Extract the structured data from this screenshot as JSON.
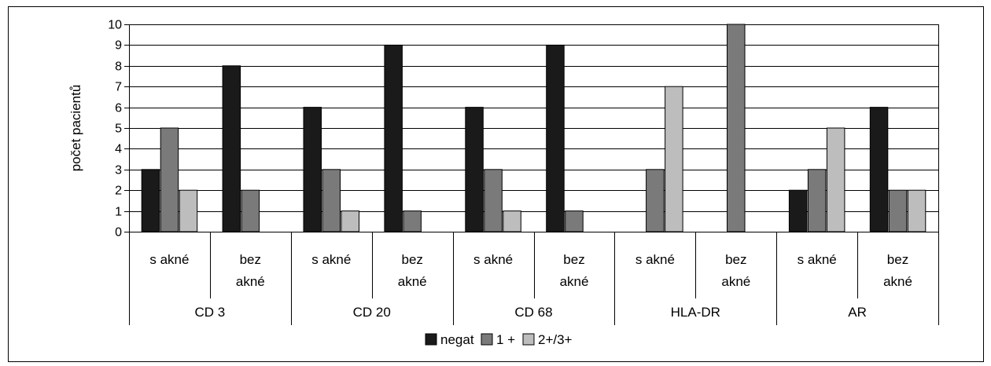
{
  "chart_data": {
    "type": "bar",
    "ylabel": "počet pacientů",
    "ylim": [
      0,
      10
    ],
    "yticks": [
      0,
      1,
      2,
      3,
      4,
      5,
      6,
      7,
      8,
      9,
      10
    ],
    "grid": true,
    "legend_position": "bottom",
    "groups": [
      {
        "label": "CD 3",
        "subgroups": [
          {
            "label": [
              "s akné"
            ],
            "values": [
              3,
              5,
              2
            ]
          },
          {
            "label": [
              "bez",
              "akné"
            ],
            "values": [
              8,
              2,
              0
            ]
          }
        ]
      },
      {
        "label": "CD 20",
        "subgroups": [
          {
            "label": [
              "s akné"
            ],
            "values": [
              6,
              3,
              1
            ]
          },
          {
            "label": [
              "bez",
              "akné"
            ],
            "values": [
              9,
              1,
              0
            ]
          }
        ]
      },
      {
        "label": "CD 68",
        "subgroups": [
          {
            "label": [
              "s akné"
            ],
            "values": [
              6,
              3,
              1
            ]
          },
          {
            "label": [
              "bez",
              "akné"
            ],
            "values": [
              9,
              1,
              0
            ]
          }
        ]
      },
      {
        "label": "HLA-DR",
        "subgroups": [
          {
            "label": [
              "s akné"
            ],
            "values": [
              0,
              3,
              7
            ]
          },
          {
            "label": [
              "bez",
              "akné"
            ],
            "values": [
              0,
              10,
              0
            ]
          }
        ]
      },
      {
        "label": "AR",
        "subgroups": [
          {
            "label": [
              "s akné"
            ],
            "values": [
              2,
              3,
              5
            ]
          },
          {
            "label": [
              "bez",
              "akné"
            ],
            "values": [
              6,
              2,
              2
            ]
          }
        ]
      }
    ],
    "series": [
      {
        "name": "negat",
        "color": "#1a1a1a"
      },
      {
        "name": "1 +",
        "color": "#7a7a7a"
      },
      {
        "name": "2+/3+",
        "color": "#bdbdbd"
      }
    ]
  }
}
